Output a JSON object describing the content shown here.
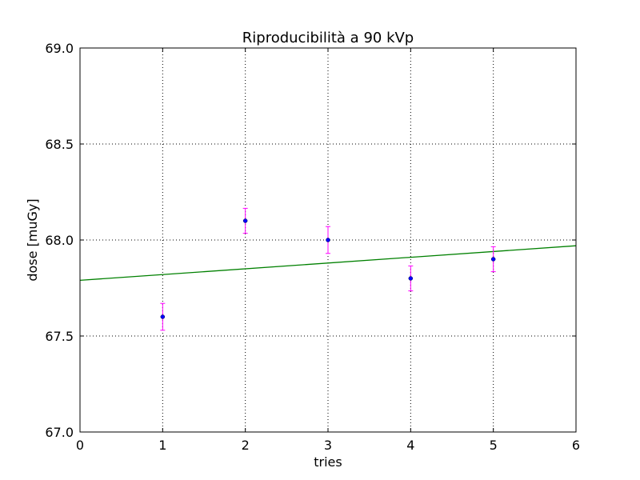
{
  "chart_data": {
    "type": "scatter",
    "title": "Riproducibilità a 90 kVp",
    "xlabel": "tries",
    "ylabel": "dose [muGy]",
    "xlim": [
      0,
      6
    ],
    "ylim": [
      67.0,
      69.0
    ],
    "xticks": [
      "0",
      "1",
      "2",
      "3",
      "4",
      "5",
      "6"
    ],
    "yticks": [
      "67.0",
      "67.5",
      "68.0",
      "68.5",
      "69.0"
    ],
    "grid": true,
    "points": {
      "x": [
        1,
        2,
        3,
        4,
        5
      ],
      "y": [
        67.6,
        68.1,
        68.0,
        67.8,
        67.9
      ],
      "yerr": [
        0.07,
        0.065,
        0.07,
        0.065,
        0.065
      ],
      "color": "#0000ff",
      "errorbar_color": "#ff00ff"
    },
    "fit_line": {
      "x": [
        0,
        6
      ],
      "y": [
        67.79,
        67.97
      ],
      "color": "#008000"
    }
  }
}
